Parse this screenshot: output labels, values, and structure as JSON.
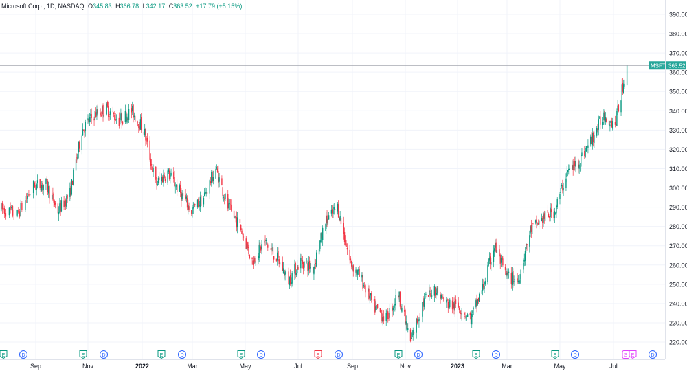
{
  "header": {
    "symbol": "Microsoft Corp., 1D, NASDAQ",
    "open_label": "O",
    "open_value": "345.83",
    "high_label": "H",
    "high_value": "366.78",
    "low_label": "L",
    "low_value": "342.17",
    "close_label": "C",
    "close_value": "363.52",
    "change": "+17.79 (+5.15%)"
  },
  "price_tag": {
    "ticker": "MSFT",
    "price": "363.52"
  },
  "colors": {
    "up": "#089981",
    "down": "#f23645",
    "grid": "#f0f3fa",
    "axis_text": "#131722",
    "earnings_up": "#089981",
    "earnings_down": "#f23645",
    "dividend": "#2962ff",
    "split": "#e040fb"
  },
  "chart_data": {
    "type": "candlestick",
    "title": "",
    "xlabel": "",
    "ylabel": "",
    "ylim": [
      213,
      397
    ],
    "y_ticks": [
      "220.00",
      "230.00",
      "240.00",
      "250.00",
      "260.00",
      "270.00",
      "280.00",
      "290.00",
      "300.00",
      "310.00",
      "320.00",
      "330.00",
      "340.00",
      "350.00",
      "360.00",
      "370.00",
      "380.00",
      "390.00"
    ],
    "x_ticks": [
      "Sep",
      "Nov",
      "2022",
      "Mar",
      "May",
      "Jul",
      "Sep",
      "Nov",
      "2023",
      "Mar",
      "May",
      "Jul"
    ],
    "bold_x_ticks": [
      "2022",
      "2023"
    ],
    "approx_close_path": [
      {
        "date": "2021-08-02",
        "close": 289
      },
      {
        "date": "2021-08-16",
        "close": 286
      },
      {
        "date": "2021-08-30",
        "close": 301
      },
      {
        "date": "2021-09-13",
        "close": 302
      },
      {
        "date": "2021-09-27",
        "close": 288
      },
      {
        "date": "2021-10-11",
        "close": 297
      },
      {
        "date": "2021-10-25",
        "close": 330
      },
      {
        "date": "2021-11-08",
        "close": 338
      },
      {
        "date": "2021-11-22",
        "close": 341
      },
      {
        "date": "2021-12-06",
        "close": 335
      },
      {
        "date": "2021-12-20",
        "close": 340
      },
      {
        "date": "2022-01-03",
        "close": 330
      },
      {
        "date": "2022-01-17",
        "close": 302
      },
      {
        "date": "2022-01-31",
        "close": 308
      },
      {
        "date": "2022-02-14",
        "close": 298
      },
      {
        "date": "2022-02-28",
        "close": 288
      },
      {
        "date": "2022-03-14",
        "close": 295
      },
      {
        "date": "2022-03-28",
        "close": 310
      },
      {
        "date": "2022-04-11",
        "close": 290
      },
      {
        "date": "2022-04-25",
        "close": 280
      },
      {
        "date": "2022-05-09",
        "close": 262
      },
      {
        "date": "2022-05-23",
        "close": 272
      },
      {
        "date": "2022-06-06",
        "close": 264
      },
      {
        "date": "2022-06-20",
        "close": 252
      },
      {
        "date": "2022-07-04",
        "close": 262
      },
      {
        "date": "2022-07-18",
        "close": 258
      },
      {
        "date": "2022-08-01",
        "close": 282
      },
      {
        "date": "2022-08-15",
        "close": 290
      },
      {
        "date": "2022-08-29",
        "close": 262
      },
      {
        "date": "2022-09-12",
        "close": 252
      },
      {
        "date": "2022-09-26",
        "close": 238
      },
      {
        "date": "2022-10-10",
        "close": 232
      },
      {
        "date": "2022-10-24",
        "close": 245
      },
      {
        "date": "2022-11-07",
        "close": 220
      },
      {
        "date": "2022-11-21",
        "close": 240
      },
      {
        "date": "2022-12-05",
        "close": 248
      },
      {
        "date": "2022-12-19",
        "close": 240
      },
      {
        "date": "2023-01-03",
        "close": 238
      },
      {
        "date": "2023-01-17",
        "close": 232
      },
      {
        "date": "2023-01-31",
        "close": 248
      },
      {
        "date": "2023-02-14",
        "close": 270
      },
      {
        "date": "2023-02-28",
        "close": 254
      },
      {
        "date": "2023-03-14",
        "close": 252
      },
      {
        "date": "2023-03-28",
        "close": 278
      },
      {
        "date": "2023-04-11",
        "close": 284
      },
      {
        "date": "2023-04-25",
        "close": 288
      },
      {
        "date": "2023-05-09",
        "close": 308
      },
      {
        "date": "2023-05-23",
        "close": 314
      },
      {
        "date": "2023-06-06",
        "close": 325
      },
      {
        "date": "2023-06-20",
        "close": 338
      },
      {
        "date": "2023-07-03",
        "close": 333
      },
      {
        "date": "2023-07-17",
        "close": 363.52
      }
    ],
    "event_markers": [
      {
        "type": "E",
        "color": "#089981"
      },
      {
        "type": "D",
        "color": "#2962ff"
      },
      {
        "type": "E",
        "color": "#089981"
      },
      {
        "type": "D",
        "color": "#2962ff"
      },
      {
        "type": "E",
        "color": "#089981"
      },
      {
        "type": "D",
        "color": "#2962ff"
      },
      {
        "type": "E",
        "color": "#089981"
      },
      {
        "type": "D",
        "color": "#2962ff"
      },
      {
        "type": "E",
        "color": "#f23645"
      },
      {
        "type": "D",
        "color": "#2962ff"
      },
      {
        "type": "E",
        "color": "#089981"
      },
      {
        "type": "D",
        "color": "#2962ff"
      },
      {
        "type": "E",
        "color": "#089981"
      },
      {
        "type": "D",
        "color": "#2962ff"
      },
      {
        "type": "E",
        "color": "#089981"
      },
      {
        "type": "D",
        "color": "#2962ff"
      },
      {
        "type": "S",
        "color": "#e040fb"
      },
      {
        "type": "E",
        "color": "#e040fb"
      },
      {
        "type": "D",
        "color": "#2962ff"
      }
    ]
  }
}
